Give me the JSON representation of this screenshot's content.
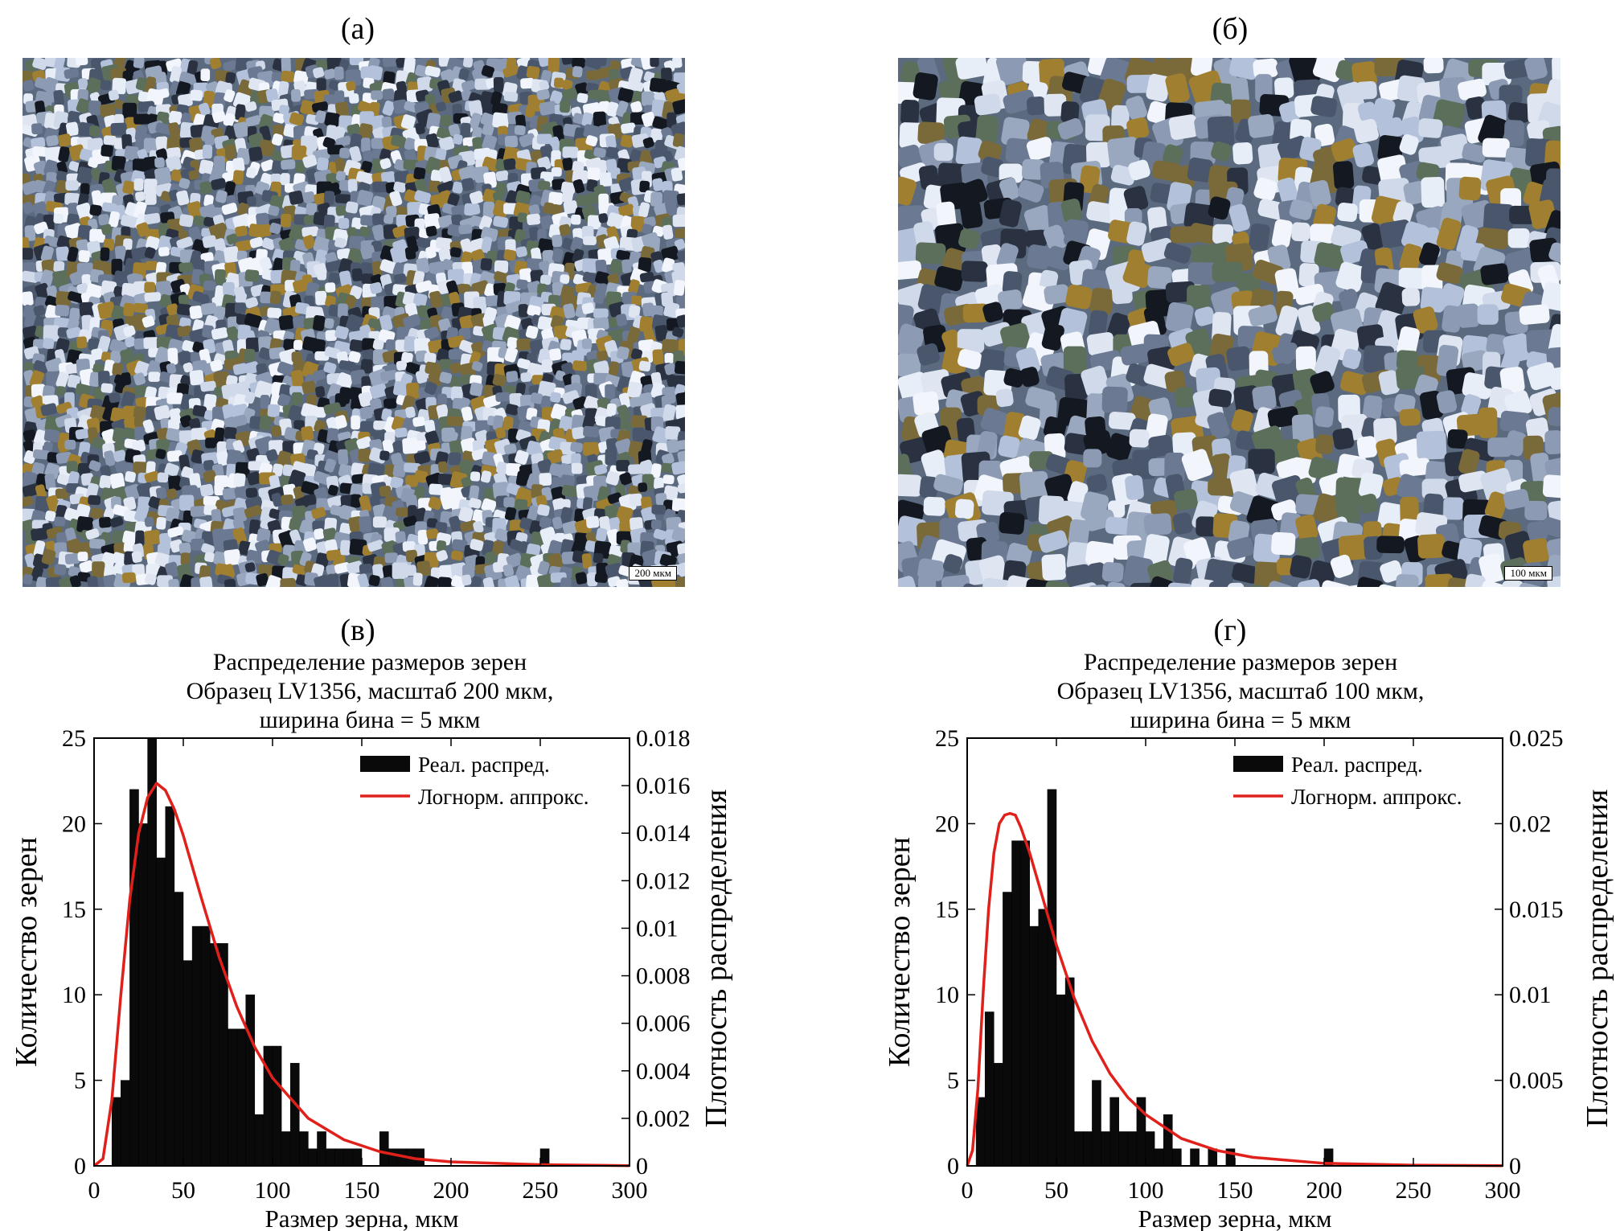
{
  "panels": {
    "a": {
      "label": "(а)",
      "scale_bar": "200 мкм"
    },
    "b": {
      "label": "(б)",
      "scale_bar": "100 мкм"
    },
    "c": {
      "label": "(в)"
    },
    "d": {
      "label": "(г)"
    }
  },
  "colors": {
    "bars": "#0a0a0a",
    "fit": "#e0201b",
    "photo_base": "#5b6a7e"
  },
  "chart_data": [
    {
      "type": "bar",
      "title_lines": [
        "Распределение размеров зерен",
        "Образец LV1356, масштаб 200 мкм,",
        "ширина бина = 5 мкм"
      ],
      "xlabel": "Размер зерна, мкм",
      "ylabel": "Количество зерен",
      "y2label": "Плотность распределения",
      "xlim": [
        0,
        300
      ],
      "ylim": [
        0,
        25
      ],
      "y2lim": [
        0,
        0.018
      ],
      "xticks": [
        "0",
        "50",
        "100",
        "150",
        "200",
        "250",
        "300"
      ],
      "yticks": [
        "0",
        "5",
        "10",
        "15",
        "20",
        "25"
      ],
      "y2ticks": [
        "0",
        "0.002",
        "0.004",
        "0.006",
        "0.008",
        "0.01",
        "0.012",
        "0.014",
        "0.016",
        "0.018"
      ],
      "bin_width": 5,
      "legend": {
        "bars": "Реал. распред.",
        "fit": "Логнорм. аппрокс.",
        "position": "top-right"
      },
      "bin_starts": [
        10,
        15,
        20,
        25,
        30,
        35,
        40,
        45,
        50,
        55,
        60,
        65,
        70,
        75,
        80,
        85,
        90,
        95,
        100,
        105,
        110,
        115,
        120,
        125,
        130,
        135,
        140,
        145,
        160,
        165,
        170,
        175,
        180,
        250
      ],
      "counts": [
        4,
        5,
        22,
        20,
        25,
        18,
        21,
        16,
        12,
        14,
        14,
        13,
        13,
        8,
        8,
        10,
        3,
        7,
        7,
        2,
        6,
        2,
        1,
        2,
        1,
        1,
        1,
        1,
        2,
        1,
        1,
        1,
        1,
        1
      ],
      "fit_x": [
        0,
        5,
        10,
        15,
        20,
        25,
        30,
        35,
        40,
        45,
        50,
        60,
        70,
        80,
        90,
        100,
        120,
        140,
        160,
        180,
        200,
        250,
        300
      ],
      "fit_y": [
        0,
        0.0003,
        0.0028,
        0.0072,
        0.0112,
        0.014,
        0.0155,
        0.0161,
        0.0158,
        0.015,
        0.0139,
        0.0113,
        0.0088,
        0.0067,
        0.005,
        0.0037,
        0.002,
        0.0011,
        0.0006,
        0.0003,
        0.00017,
        5e-05,
        1e-05
      ]
    },
    {
      "type": "bar",
      "title_lines": [
        "Распределение размеров зерен",
        "Образец LV1356, масштаб 100 мкм,",
        "ширина бина = 5 мкм"
      ],
      "xlabel": "Размер зерна, мкм",
      "ylabel": "Количество зерен",
      "y2label": "Плотность распределения",
      "xlim": [
        0,
        300
      ],
      "ylim": [
        0,
        25
      ],
      "y2lim": [
        0,
        0.025
      ],
      "xticks": [
        "0",
        "50",
        "100",
        "150",
        "200",
        "250",
        "300"
      ],
      "yticks": [
        "0",
        "5",
        "10",
        "15",
        "20",
        "25"
      ],
      "y2ticks": [
        "0",
        "0.005",
        "0.01",
        "0.015",
        "0.02",
        "0.025"
      ],
      "bin_width": 5,
      "legend": {
        "bars": "Реал. распред.",
        "fit": "Логнорм. аппрокс.",
        "position": "top-right"
      },
      "bin_starts": [
        5,
        10,
        15,
        20,
        25,
        30,
        35,
        40,
        45,
        50,
        55,
        60,
        65,
        70,
        75,
        80,
        85,
        90,
        95,
        100,
        105,
        110,
        115,
        125,
        135,
        145,
        200
      ],
      "counts": [
        4,
        9,
        6,
        16,
        19,
        19,
        14,
        15,
        22,
        10,
        11,
        2,
        2,
        5,
        2,
        4,
        2,
        2,
        4,
        2,
        1,
        3,
        1,
        1,
        1,
        1,
        1
      ],
      "fit_x": [
        0,
        3,
        6,
        9,
        12,
        15,
        18,
        21,
        24,
        27,
        30,
        35,
        40,
        45,
        50,
        60,
        70,
        80,
        90,
        100,
        120,
        140,
        160,
        200,
        250,
        300
      ],
      "fit_y": [
        0,
        0.0009,
        0.0045,
        0.0102,
        0.015,
        0.0183,
        0.02,
        0.0205,
        0.0206,
        0.0205,
        0.0198,
        0.0183,
        0.0165,
        0.0147,
        0.0129,
        0.0098,
        0.0073,
        0.0054,
        0.004,
        0.003,
        0.0016,
        0.0009,
        0.0005,
        0.00015,
        4e-05,
        1e-05
      ]
    }
  ]
}
